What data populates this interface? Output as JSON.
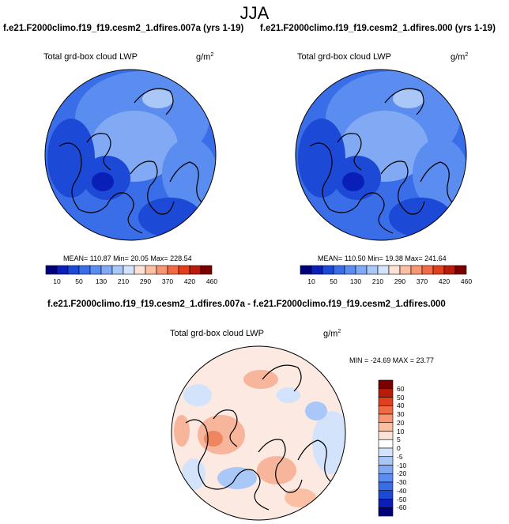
{
  "main_title": "JJA",
  "panels": [
    {
      "case_title": "f.e21.F2000climo.f19_f19.cesm2_1.dfires.007a (yrs 1-19)",
      "var_title": "Total grd-box cloud LWP",
      "units": "g/m",
      "units_sup": "2",
      "stats": "MEAN= 110.87  Min=  20.05  Max= 228.54"
    },
    {
      "case_title": "f.e21.F2000climo.f19_f19.cesm2_1.dfires.000 (yrs 1-19)",
      "var_title": "Total grd-box cloud LWP",
      "units": "g/m",
      "units_sup": "2",
      "stats": "MEAN= 110.50  Min=  19.38  Max= 241.64"
    },
    {
      "case_title": "f.e21.F2000climo.f19_f19.cesm2_1.dfires.007a - f.e21.F2000climo.f19_f19.cesm2_1.dfires.000",
      "var_title": "Total grd-box cloud LWP",
      "units": "g/m",
      "units_sup": "2",
      "stats": "MIN = -24.69 MAX =  23.77"
    }
  ],
  "colors": {
    "abs_scale": [
      "#00007a",
      "#0a1fb8",
      "#1c49d6",
      "#3a6ee8",
      "#5b8cf0",
      "#82aaf4",
      "#a9c7f7",
      "#d3e3fb",
      "#fde2d8",
      "#fbbfa4",
      "#f79672",
      "#f06a45",
      "#e2401d",
      "#b81a0b",
      "#7a0000"
    ],
    "diff_scale": [
      "#00007a",
      "#0a1fb8",
      "#1c49d6",
      "#3a6ee8",
      "#5b8cf0",
      "#82aaf4",
      "#a9c7f7",
      "#d3e3fb",
      "#ffffff",
      "#fde2d8",
      "#fbbfa4",
      "#f79672",
      "#f06a45",
      "#e2401d",
      "#b81a0b",
      "#7a0000"
    ]
  },
  "chart_data": [
    {
      "type": "heatmap",
      "projection": "north-polar-stereographic",
      "title": "Total grd-box cloud LWP",
      "units": "g/m2",
      "stats": {
        "mean": 110.87,
        "min": 20.05,
        "max": 228.54
      },
      "colorbar_labels": [
        "10",
        "50",
        "130",
        "210",
        "290",
        "370",
        "420",
        "460"
      ]
    },
    {
      "type": "heatmap",
      "projection": "north-polar-stereographic",
      "title": "Total grd-box cloud LWP",
      "units": "g/m2",
      "stats": {
        "mean": 110.5,
        "min": 19.38,
        "max": 241.64
      },
      "colorbar_labels": [
        "10",
        "50",
        "130",
        "210",
        "290",
        "370",
        "420",
        "460"
      ]
    },
    {
      "type": "heatmap",
      "projection": "north-polar-stereographic",
      "title": "Total grd-box cloud LWP",
      "units": "g/m2",
      "stats": {
        "min": -24.69,
        "max": 23.77
      },
      "colorbar_labels": [
        "60",
        "50",
        "40",
        "30",
        "20",
        "10",
        "5",
        "0",
        "-5",
        "-10",
        "-20",
        "-30",
        "-40",
        "-50",
        "-60"
      ]
    }
  ]
}
